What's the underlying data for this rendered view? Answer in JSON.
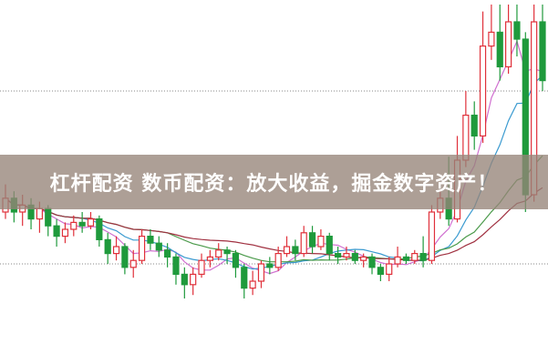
{
  "banner": {
    "title": "杠杆配资 数币配资：放大收益，掘金数字资产！"
  },
  "chart_data": {
    "type": "candlestick",
    "title": "",
    "xlabel": "",
    "ylabel": "",
    "grid": "two dotted horizontal reference lines",
    "ylim": [
      0,
      100
    ],
    "colors": {
      "up": "#e0303a",
      "down": "#1f9a3c",
      "ma": [
        "#d070d0",
        "#3a9ad0",
        "#4a9a4a",
        "#a03040"
      ]
    },
    "moving_average_periods": [
      5,
      10,
      20,
      30
    ],
    "reference_levels": [
      25,
      75
    ],
    "candles": [
      [
        40,
        44,
        48,
        38
      ],
      [
        44,
        40,
        46,
        37
      ],
      [
        40,
        42,
        45,
        36
      ],
      [
        42,
        38,
        44,
        35
      ],
      [
        38,
        41,
        43,
        34
      ],
      [
        41,
        36,
        42,
        33
      ],
      [
        36,
        33,
        38,
        30
      ],
      [
        33,
        35,
        37,
        31
      ],
      [
        35,
        37,
        39,
        33
      ],
      [
        37,
        36,
        40,
        34
      ],
      [
        36,
        38,
        40,
        35
      ],
      [
        38,
        32,
        39,
        30
      ],
      [
        32,
        28,
        34,
        25
      ],
      [
        28,
        30,
        33,
        26
      ],
      [
        30,
        24,
        31,
        22
      ],
      [
        24,
        26,
        29,
        21
      ],
      [
        26,
        33,
        35,
        25
      ],
      [
        33,
        31,
        35,
        29
      ],
      [
        31,
        29,
        33,
        27
      ],
      [
        29,
        27,
        31,
        24
      ],
      [
        27,
        22,
        28,
        19
      ],
      [
        22,
        19,
        24,
        15
      ],
      [
        19,
        22,
        24,
        16
      ],
      [
        22,
        26,
        28,
        21
      ],
      [
        26,
        27,
        29,
        24
      ],
      [
        27,
        29,
        31,
        26
      ],
      [
        29,
        28,
        30,
        25
      ],
      [
        28,
        24,
        29,
        21
      ],
      [
        24,
        18,
        25,
        15
      ],
      [
        18,
        20,
        23,
        16
      ],
      [
        20,
        25,
        26,
        18
      ],
      [
        25,
        24,
        27,
        22
      ],
      [
        24,
        28,
        30,
        23
      ],
      [
        28,
        30,
        33,
        27
      ],
      [
        30,
        28,
        32,
        26
      ],
      [
        28,
        34,
        36,
        27
      ],
      [
        34,
        30,
        36,
        28
      ],
      [
        30,
        33,
        35,
        29
      ],
      [
        33,
        28,
        34,
        26
      ],
      [
        28,
        27,
        30,
        25
      ],
      [
        27,
        28,
        30,
        26
      ],
      [
        28,
        26,
        29,
        25
      ],
      [
        26,
        27,
        28,
        24
      ],
      [
        27,
        24,
        28,
        22
      ],
      [
        24,
        22,
        25,
        20
      ],
      [
        22,
        25,
        27,
        20
      ],
      [
        25,
        27,
        30,
        24
      ],
      [
        27,
        26,
        28,
        25
      ],
      [
        26,
        28,
        29,
        25
      ],
      [
        28,
        26,
        33,
        24
      ],
      [
        26,
        40,
        42,
        25
      ],
      [
        40,
        44,
        46,
        38
      ],
      [
        44,
        38,
        56,
        36
      ],
      [
        38,
        55,
        62,
        37
      ],
      [
        55,
        68,
        75,
        53
      ],
      [
        68,
        62,
        72,
        58
      ],
      [
        62,
        88,
        98,
        60
      ],
      [
        88,
        92,
        100,
        84
      ],
      [
        92,
        82,
        100,
        78
      ],
      [
        82,
        95,
        100,
        80
      ],
      [
        95,
        90,
        100,
        85
      ],
      [
        90,
        45,
        92,
        40
      ],
      [
        45,
        95,
        100,
        43
      ],
      [
        95,
        78,
        100,
        75
      ]
    ]
  }
}
